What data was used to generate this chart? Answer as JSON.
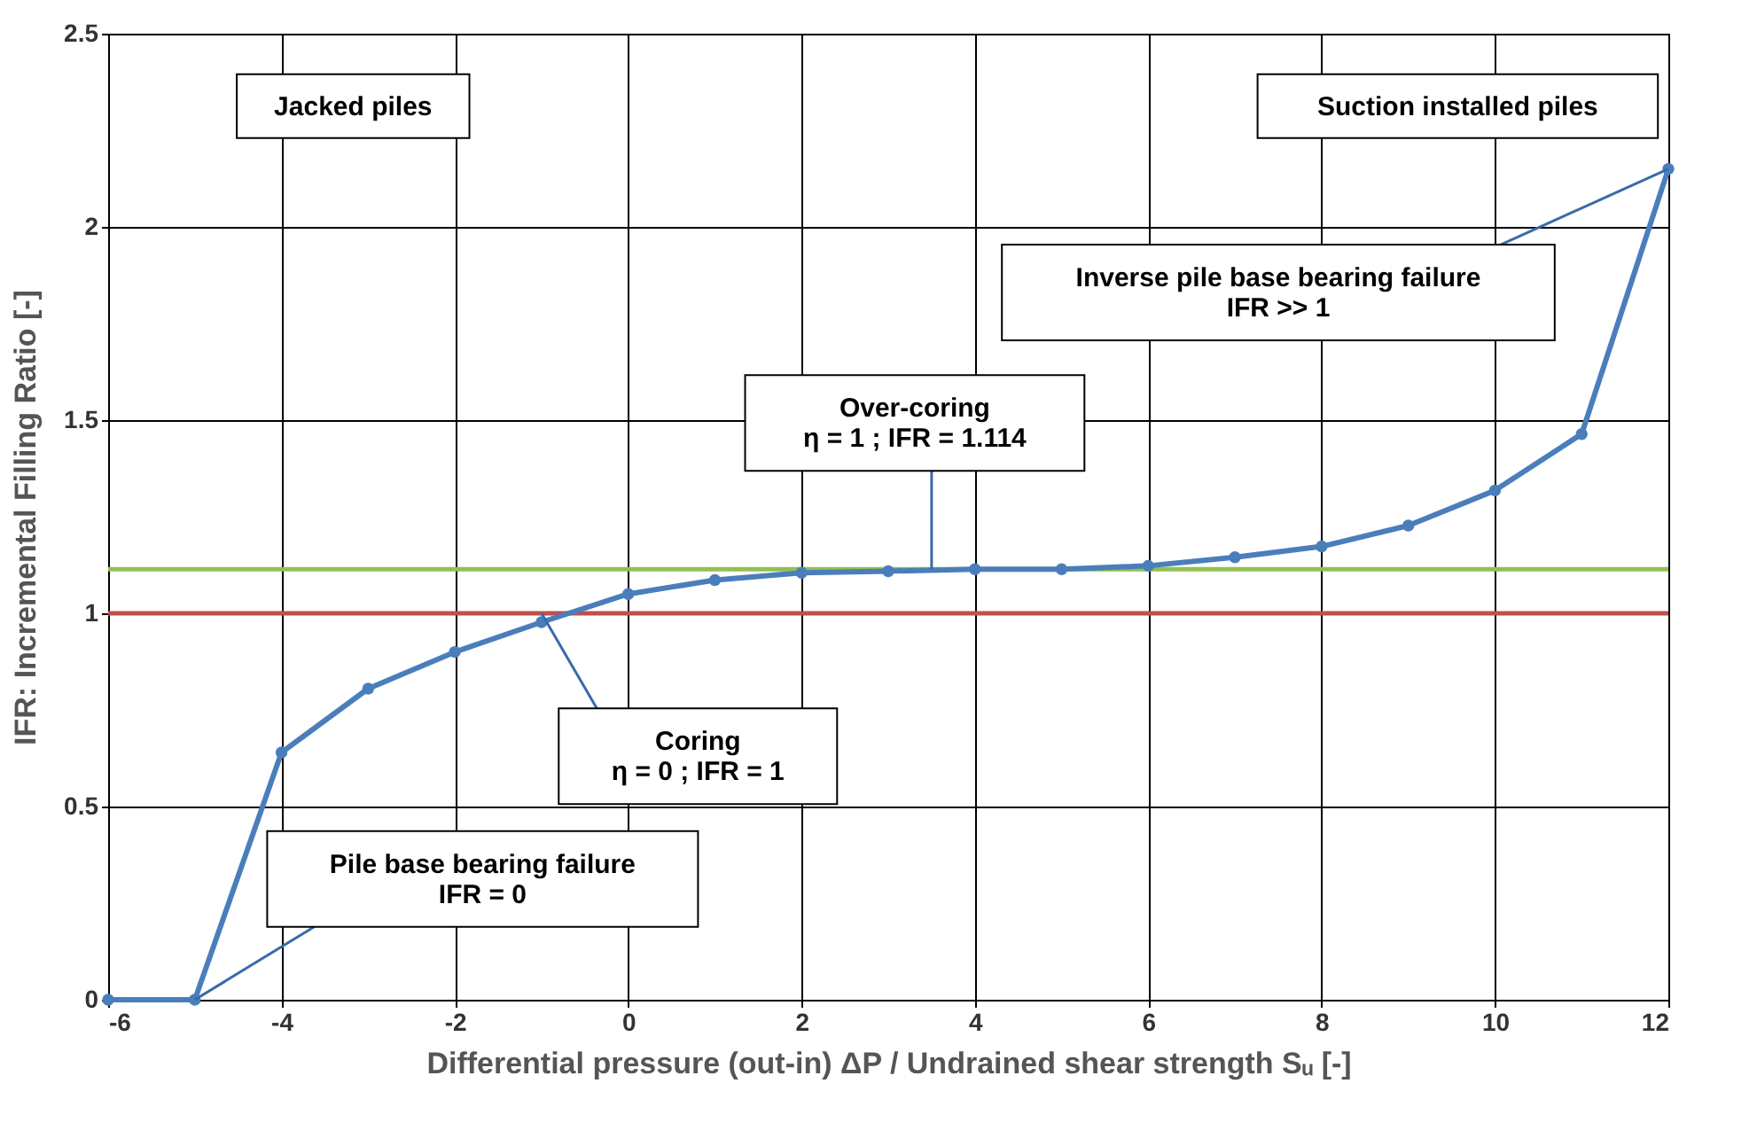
{
  "chart_data": {
    "type": "line",
    "xlabel": "Differential pressure (out-in) ΔP / Undrained shear strength Sᵤ  [-]",
    "ylabel": "IFR: Incremental Filling Ratio  [-]",
    "x": [
      -6,
      -5,
      -4,
      -3,
      -2,
      -1,
      0,
      1,
      2,
      3,
      4,
      5,
      6,
      7,
      8,
      9,
      10,
      11,
      12
    ],
    "series": [
      {
        "color": "#4a7ebb",
        "values": [
          0,
          0,
          0.64,
          0.805,
          0.9,
          0.977,
          1.05,
          1.086,
          1.105,
          1.109,
          1.114,
          1.114,
          1.123,
          1.145,
          1.173,
          1.227,
          1.318,
          1.464,
          2.15
        ]
      }
    ],
    "xlim": [
      -6,
      12
    ],
    "xticks": [
      -6,
      -4,
      -2,
      0,
      2,
      4,
      6,
      8,
      10,
      12
    ],
    "ylim": [
      0,
      2.5
    ],
    "yticks": [
      0,
      0.5,
      1,
      1.5,
      2,
      2.5
    ],
    "grid": true,
    "marker": "circle",
    "line_style": "solid",
    "ref_lines": [
      {
        "axis": "y",
        "value": 1.114,
        "color": "#92c050"
      },
      {
        "axis": "y",
        "value": 1,
        "color": "#c0504d"
      }
    ],
    "annotations": [
      "Jacked piles",
      "Suction installed piles",
      {
        "text": "Pile base bearing failure\nIFR = 0",
        "x": -5,
        "y": 0
      },
      {
        "text": "Coring\nη = 0 ; IFR = 1",
        "x": -1,
        "y": 1
      },
      {
        "text": "Over-coring\nη = 1 ; IFR = 1.114",
        "x": 3.5,
        "y": 1.114
      },
      {
        "text": "Inverse pile base bearing failure\nIFR >> 1",
        "x": 12,
        "y": 2.15
      }
    ]
  }
}
